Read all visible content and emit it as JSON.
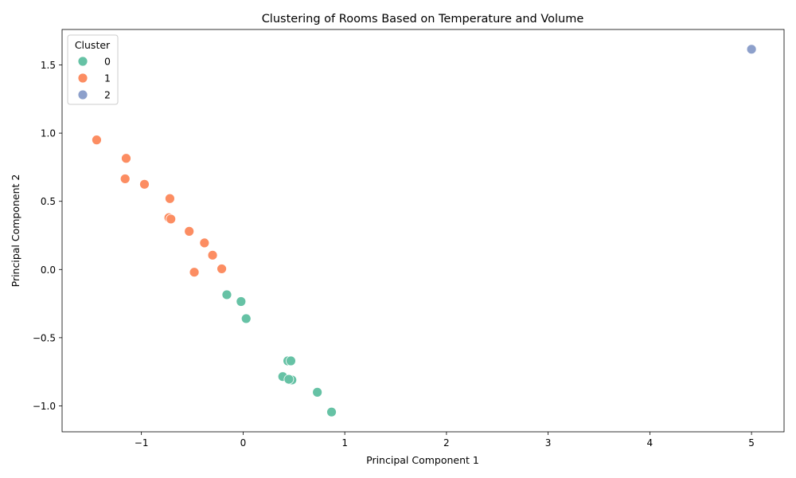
{
  "chart_data": {
    "type": "scatter",
    "title": "Clustering of Rooms Based on Temperature and Volume",
    "xlabel": "Principal Component 1",
    "ylabel": "Principal Component 2",
    "xlim": [
      -1.78,
      5.32
    ],
    "ylim": [
      -1.19,
      1.76
    ],
    "x_ticks": [
      -1,
      0,
      1,
      2,
      3,
      4,
      5
    ],
    "y_ticks": [
      -1.0,
      -0.5,
      0.0,
      0.5,
      1.0,
      1.5
    ],
    "x_tick_labels": [
      "−1",
      "0",
      "1",
      "2",
      "3",
      "4",
      "5"
    ],
    "y_tick_labels": [
      "−1.0",
      "−0.5",
      "0.0",
      "0.5",
      "1.0",
      "1.5"
    ],
    "grid": false,
    "legend": {
      "title": "Cluster",
      "placement": "top-left"
    },
    "series": [
      {
        "name": "0",
        "color": "#66c2a5",
        "points": [
          [
            -0.16,
            -0.185
          ],
          [
            -0.02,
            -0.235
          ],
          [
            0.03,
            -0.36
          ],
          [
            0.44,
            -0.67
          ],
          [
            0.47,
            -0.67
          ],
          [
            0.39,
            -0.785
          ],
          [
            0.48,
            -0.81
          ],
          [
            0.45,
            -0.805
          ],
          [
            0.73,
            -0.9
          ],
          [
            0.87,
            -1.045
          ]
        ]
      },
      {
        "name": "1",
        "color": "#fc8d62",
        "points": [
          [
            -1.44,
            0.95
          ],
          [
            -1.15,
            0.815
          ],
          [
            -1.16,
            0.665
          ],
          [
            -0.97,
            0.625
          ],
          [
            -0.72,
            0.52
          ],
          [
            -0.73,
            0.38
          ],
          [
            -0.71,
            0.37
          ],
          [
            -0.53,
            0.28
          ],
          [
            -0.38,
            0.195
          ],
          [
            -0.3,
            0.105
          ],
          [
            -0.21,
            0.005
          ],
          [
            -0.48,
            -0.02
          ]
        ]
      },
      {
        "name": "2",
        "color": "#8da0cb",
        "points": [
          [
            5.0,
            1.615
          ]
        ]
      }
    ]
  }
}
